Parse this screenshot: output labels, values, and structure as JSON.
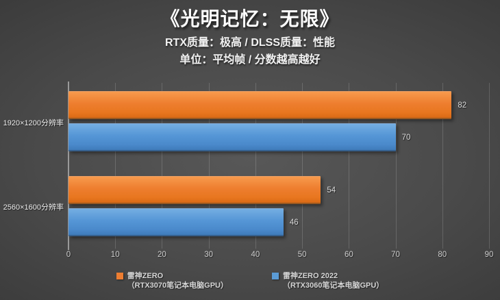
{
  "title": "《光明记忆：无限》",
  "subtitle_line1": "RTX质量：极高 / DLSS质量：性能",
  "subtitle_line2": "单位：平均帧 / 分数越高越好",
  "colors": {
    "orange": "#ED7D31",
    "blue": "#5B9BD5",
    "background_center": "#585858",
    "background_edge": "#262626",
    "label_text": "#D9D9D9"
  },
  "chart_data": {
    "type": "bar",
    "orientation": "horizontal",
    "title": "《光明记忆：无限》",
    "subtitle": "RTX质量：极高 / DLSS质量：性能 单位：平均帧 / 分数越高越好",
    "categories": [
      "1920×1200分辨率",
      "2560×1600分辨率"
    ],
    "series": [
      {
        "name": "雷神ZERO（RTX3070笔记本电脑GPU）",
        "color": "#ED7D31",
        "values": [
          82,
          54
        ]
      },
      {
        "name": "雷神ZERO 2022（RTX3060笔记本电脑GPU）",
        "color": "#5B9BD5",
        "values": [
          70,
          46
        ]
      }
    ],
    "xticks": [
      0,
      10,
      20,
      30,
      40,
      50,
      60,
      70,
      80,
      90
    ],
    "xlim": [
      0,
      90
    ],
    "xmax": 90,
    "value_labels": true,
    "grid": "vertical",
    "legend_position": "bottom"
  },
  "legend": {
    "entries": [
      {
        "line1": "雷神ZERO",
        "line2": "（RTX3070笔记本电脑GPU）",
        "color": "#ED7D31"
      },
      {
        "line1": "雷神ZERO 2022",
        "line2": "（RTX3060笔记本电脑GPU）",
        "color": "#5B9BD5"
      }
    ]
  }
}
